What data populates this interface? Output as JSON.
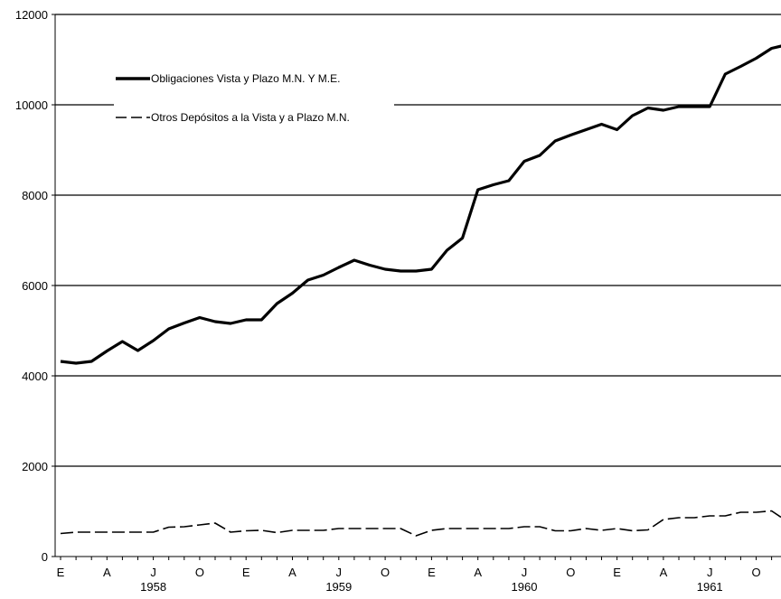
{
  "chart_data": {
    "type": "line",
    "ylim": [
      0,
      12000
    ],
    "yticks": [
      0,
      2000,
      4000,
      6000,
      8000,
      10000,
      12000
    ],
    "gridlines": "horizontal",
    "legend_position": "top-left",
    "x_month_labels": [
      "E",
      "A",
      "J",
      "O",
      "E",
      "A",
      "J",
      "O",
      "E",
      "A",
      "J",
      "O",
      "E",
      "A",
      "J",
      "O"
    ],
    "x_year_labels": [
      "1958",
      "1959",
      "1960",
      "1961"
    ],
    "series": [
      {
        "name": "Obligaciones Vista y Plazo M.N. Y M.E.",
        "style": "solid",
        "values": [
          4320,
          4280,
          4320,
          4550,
          4760,
          4560,
          4780,
          5040,
          5170,
          5290,
          5200,
          5160,
          5240,
          5240,
          5600,
          5830,
          6120,
          6230,
          6400,
          6560,
          6450,
          6360,
          6320,
          6320,
          6360,
          6780,
          7050,
          8120,
          8230,
          8320,
          8750,
          8880,
          9200,
          9330,
          9450,
          9570,
          9450,
          9760,
          9930,
          9880,
          9960,
          9960,
          9960,
          10680,
          10850,
          11030,
          11250,
          11330
        ]
      },
      {
        "name": "Otros Depósitos a la Vista y a Plazo M.N.",
        "style": "dashed",
        "values": [
          510,
          540,
          540,
          540,
          540,
          540,
          540,
          650,
          660,
          700,
          740,
          540,
          570,
          580,
          530,
          580,
          580,
          580,
          620,
          620,
          620,
          620,
          620,
          460,
          580,
          620,
          620,
          620,
          620,
          620,
          660,
          660,
          570,
          570,
          620,
          580,
          620,
          570,
          590,
          820,
          860,
          860,
          900,
          900,
          980,
          980,
          1010,
          780
        ]
      }
    ]
  },
  "colors": {
    "lines": "#000000",
    "grid": "#000000",
    "background": "#ffffff"
  }
}
